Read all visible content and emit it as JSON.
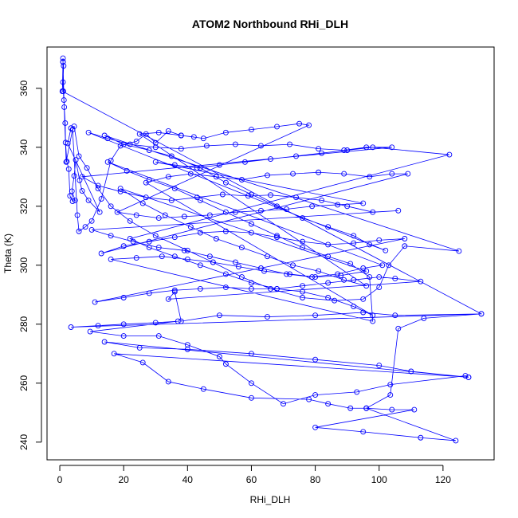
{
  "chart_data": {
    "type": "line",
    "title": "ATOM2 Northbound RHi_DLH",
    "xlabel": "RHi_DLH",
    "ylabel": "Theta (K)",
    "xlim": [
      -4,
      136
    ],
    "ylim": [
      234,
      374
    ],
    "xticks": [
      0,
      20,
      40,
      60,
      80,
      100,
      120
    ],
    "yticks": [
      240,
      260,
      280,
      300,
      320,
      340,
      360
    ],
    "grid": false,
    "legend": "none",
    "series_color": "#0000ff",
    "marker": "open-circle",
    "points": [
      [
        1.0,
        370.2
      ],
      [
        1.0,
        368.9
      ],
      [
        1.2,
        367.6
      ],
      [
        1.0,
        362.1
      ],
      [
        1.1,
        359.0
      ],
      [
        1.4,
        353.6
      ],
      [
        1.7,
        348.2
      ],
      [
        1.8,
        341.6
      ],
      [
        2.2,
        335.2
      ],
      [
        2.8,
        332.6
      ],
      [
        3.2,
        323.5
      ],
      [
        4.0,
        321.7
      ],
      [
        4.8,
        322.0
      ],
      [
        3.8,
        325.1
      ],
      [
        4.5,
        330.3
      ],
      [
        5.0,
        335.7
      ],
      [
        6.2,
        328.8
      ],
      [
        7.0,
        325.2
      ],
      [
        9.0,
        322.0
      ],
      [
        12.5,
        318.0
      ],
      [
        2.5,
        341.3
      ],
      [
        3.5,
        346.5
      ],
      [
        4.5,
        347.1
      ],
      [
        6.0,
        337.0
      ],
      [
        8.5,
        333.0
      ],
      [
        12.0,
        326.0
      ],
      [
        16.0,
        320.0
      ],
      [
        22.0,
        315.0
      ],
      [
        30.0,
        310.0
      ],
      [
        40.0,
        305.0
      ],
      [
        48.0,
        301.0
      ],
      [
        57.0,
        296.0
      ],
      [
        66.0,
        292.0
      ],
      [
        76.0,
        289.0
      ],
      [
        86.0,
        288.0
      ],
      [
        95.0,
        288.5
      ],
      [
        100.0,
        292.5
      ],
      [
        103.0,
        300.0
      ],
      [
        108.0,
        306.5
      ],
      [
        125.0,
        304.8
      ],
      [
        14.0,
        344.0
      ],
      [
        20.0,
        341.0
      ],
      [
        28.0,
        339.0
      ],
      [
        35.0,
        337.0
      ],
      [
        44.0,
        333.0
      ],
      [
        52.0,
        328.0
      ],
      [
        60.0,
        324.0
      ],
      [
        68.0,
        320.0
      ],
      [
        76.0,
        316.0
      ],
      [
        84.0,
        313.0
      ],
      [
        92.0,
        310.0
      ],
      [
        97.0,
        307.0
      ],
      [
        102.0,
        305.0
      ],
      [
        9.0,
        345.0
      ],
      [
        15.0,
        343.0
      ],
      [
        22.0,
        341.0
      ],
      [
        30.0,
        340.0
      ],
      [
        38.0,
        339.5
      ],
      [
        46.0,
        340.5
      ],
      [
        55.0,
        341.0
      ],
      [
        63.0,
        340.5
      ],
      [
        72.0,
        341.0
      ],
      [
        81.0,
        339.5
      ],
      [
        89.0,
        339.0
      ],
      [
        96.0,
        340.0
      ],
      [
        104.0,
        340.0
      ],
      [
        7.0,
        330.0
      ],
      [
        12.0,
        327.0
      ],
      [
        19.0,
        325.0
      ],
      [
        27.0,
        323.0
      ],
      [
        35.0,
        322.0
      ],
      [
        43.0,
        323.0
      ],
      [
        51.0,
        324.0
      ],
      [
        59.0,
        323.5
      ],
      [
        66.0,
        323.8
      ],
      [
        74.0,
        323.0
      ],
      [
        82.0,
        322.0
      ],
      [
        90.0,
        320.0
      ],
      [
        98.0,
        318.0
      ],
      [
        106.0,
        318.5
      ],
      [
        10.0,
        312.0
      ],
      [
        16.0,
        310.0
      ],
      [
        23.0,
        308.0
      ],
      [
        31.0,
        306.0
      ],
      [
        39.0,
        305.0
      ],
      [
        47.0,
        303.0
      ],
      [
        55.0,
        301.0
      ],
      [
        63.0,
        299.0
      ],
      [
        71.0,
        297.0
      ],
      [
        79.0,
        296.0
      ],
      [
        87.0,
        297.0
      ],
      [
        95.0,
        299.0
      ],
      [
        101.0,
        300.0
      ],
      [
        15.0,
        335.0
      ],
      [
        21.0,
        332.0
      ],
      [
        28.0,
        329.0
      ],
      [
        36.0,
        326.0
      ],
      [
        44.0,
        322.0
      ],
      [
        52.0,
        318.0
      ],
      [
        60.0,
        314.0
      ],
      [
        68.0,
        310.0
      ],
      [
        76.0,
        306.0
      ],
      [
        84.0,
        303.0
      ],
      [
        91.0,
        300.5
      ],
      [
        97.0,
        296.0
      ],
      [
        98.0,
        281.0
      ],
      [
        16.0,
        302.0
      ],
      [
        24.0,
        302.5
      ],
      [
        32.0,
        303.0
      ],
      [
        40.0,
        302.0
      ],
      [
        48.0,
        301.0
      ],
      [
        56.0,
        299.5
      ],
      [
        64.0,
        298.0
      ],
      [
        72.0,
        297.0
      ],
      [
        80.0,
        296.0
      ],
      [
        88.0,
        296.5
      ],
      [
        96.0,
        298.0
      ],
      [
        19.0,
        326.0
      ],
      [
        26.0,
        321.0
      ],
      [
        33.0,
        317.0
      ],
      [
        41.0,
        313.0
      ],
      [
        49.0,
        309.0
      ],
      [
        57.0,
        306.0
      ],
      [
        65.0,
        303.0
      ],
      [
        73.0,
        300.0
      ],
      [
        81.0,
        298.0
      ],
      [
        89.0,
        295.0
      ],
      [
        96.0,
        293.0
      ],
      [
        25.0,
        344.5
      ],
      [
        31.0,
        345.0
      ],
      [
        38.0,
        344.0
      ],
      [
        45.0,
        343.0
      ],
      [
        52.0,
        345.0
      ],
      [
        60.0,
        346.0
      ],
      [
        68.0,
        347.0
      ],
      [
        75.0,
        348.0
      ],
      [
        78.0,
        347.5
      ],
      [
        18.0,
        318.0
      ],
      [
        24.0,
        317.0
      ],
      [
        31.0,
        316.0
      ],
      [
        39.0,
        316.5
      ],
      [
        47.0,
        317.0
      ],
      [
        55.0,
        318.0
      ],
      [
        63.0,
        318.5
      ],
      [
        71.0,
        319.0
      ],
      [
        79.0,
        320.0
      ],
      [
        87.0,
        320.5
      ],
      [
        95.0,
        321.0
      ],
      [
        30.0,
        335.0
      ],
      [
        36.0,
        334.0
      ],
      [
        43.0,
        333.0
      ],
      [
        50.0,
        334.0
      ],
      [
        58.0,
        335.0
      ],
      [
        66.0,
        336.0
      ],
      [
        74.0,
        337.0
      ],
      [
        82.0,
        338.0
      ],
      [
        90.0,
        339.0
      ],
      [
        98.0,
        340.0
      ],
      [
        122.0,
        337.5
      ],
      [
        22.0,
        309.0
      ],
      [
        28.0,
        306.0
      ],
      [
        36.0,
        303.0
      ],
      [
        44.0,
        300.0
      ],
      [
        52.0,
        297.0
      ],
      [
        60.0,
        294.0
      ],
      [
        68.0,
        292.0
      ],
      [
        76.0,
        291.0
      ],
      [
        84.0,
        289.0
      ],
      [
        92.0,
        286.0
      ],
      [
        98.0,
        283.0
      ],
      [
        27.0,
        328.0
      ],
      [
        34.0,
        330.0
      ],
      [
        41.0,
        331.0
      ],
      [
        49.0,
        330.0
      ],
      [
        57.0,
        329.0
      ],
      [
        65.0,
        330.5
      ],
      [
        73.0,
        331.0
      ],
      [
        81.0,
        331.5
      ],
      [
        89.0,
        331.0
      ],
      [
        97.0,
        330.0
      ],
      [
        104.0,
        331.0
      ],
      [
        109.0,
        331.0
      ],
      [
        13.0,
        304.0
      ],
      [
        20.0,
        306.5
      ],
      [
        28.0,
        308.0
      ],
      [
        36.0,
        309.5
      ],
      [
        44.0,
        311.0
      ],
      [
        52.0,
        311.5
      ],
      [
        60.0,
        311.0
      ],
      [
        68.0,
        309.5
      ],
      [
        76.0,
        308.0
      ],
      [
        84.0,
        307.0
      ],
      [
        92.0,
        307.5
      ],
      [
        100.0,
        308.5
      ],
      [
        108.0,
        309.0
      ],
      [
        11.0,
        287.5
      ],
      [
        20.0,
        289.0
      ],
      [
        28.0,
        290.5
      ],
      [
        36.0,
        291.5
      ],
      [
        44.0,
        292.0
      ],
      [
        52.0,
        292.5
      ],
      [
        60.0,
        292.0
      ],
      [
        68.0,
        292.0
      ],
      [
        76.0,
        293.0
      ],
      [
        84.0,
        294.0
      ],
      [
        92.0,
        295.0
      ],
      [
        100.0,
        296.0
      ],
      [
        105.0,
        295.5
      ],
      [
        113.0,
        294.5
      ],
      [
        34.0,
        288.5
      ],
      [
        36.0,
        291.0
      ],
      [
        38.0,
        281.0
      ],
      [
        50.0,
        283.0
      ],
      [
        65.0,
        282.5
      ],
      [
        80.0,
        283.0
      ],
      [
        95.0,
        284.0
      ],
      [
        105.0,
        283.0
      ],
      [
        132.0,
        283.5
      ],
      [
        3.5,
        279.0
      ],
      [
        12.0,
        279.5
      ],
      [
        20.0,
        280.0
      ],
      [
        30.0,
        280.5
      ],
      [
        37.0,
        281.0
      ],
      [
        9.5,
        277.5
      ],
      [
        20.0,
        276.0
      ],
      [
        31.0,
        276.0
      ],
      [
        40.0,
        273.0
      ],
      [
        50.0,
        269.0
      ],
      [
        52.0,
        266.5
      ],
      [
        60.0,
        260.0
      ],
      [
        70.0,
        253.0
      ],
      [
        80.0,
        256.0
      ],
      [
        93.0,
        257.0
      ],
      [
        103.5,
        259.5
      ],
      [
        127.0,
        262.5
      ],
      [
        128.0,
        262.0
      ],
      [
        14.0,
        274.0
      ],
      [
        25.0,
        272.0
      ],
      [
        40.0,
        271.5
      ],
      [
        60.0,
        270.0
      ],
      [
        80.0,
        268.0
      ],
      [
        100.0,
        266.0
      ],
      [
        110.0,
        264.0
      ],
      [
        128.0,
        262.0
      ],
      [
        17.0,
        270.0
      ],
      [
        26.0,
        267.0
      ],
      [
        34.0,
        260.5
      ],
      [
        45.0,
        258.0
      ],
      [
        60.0,
        255.0
      ],
      [
        78.0,
        254.5
      ],
      [
        84.0,
        253.0
      ],
      [
        91.0,
        251.5
      ],
      [
        96.0,
        251.5
      ],
      [
        104.0,
        251.0
      ],
      [
        111.0,
        251.0
      ],
      [
        80.0,
        245.0
      ],
      [
        95.0,
        243.5
      ],
      [
        113.0,
        241.5
      ],
      [
        124.0,
        240.5
      ],
      [
        96.0,
        251.5
      ],
      [
        103.5,
        256.0
      ],
      [
        106.0,
        278.5
      ],
      [
        114.0,
        282.0
      ],
      [
        132.0,
        283.5
      ],
      [
        0.8,
        359.0
      ],
      [
        1.0,
        369.0
      ],
      [
        1.3,
        356.0
      ],
      [
        2.0,
        335.0
      ],
      [
        4.0,
        346.0
      ],
      [
        5.5,
        317.0
      ],
      [
        6.0,
        311.5
      ],
      [
        8.0,
        313.0
      ],
      [
        10.0,
        315.0
      ],
      [
        13.0,
        322.5
      ],
      [
        16.0,
        335.5
      ],
      [
        19.0,
        340.5
      ],
      [
        24.0,
        342.0
      ],
      [
        27.0,
        344.5
      ],
      [
        30.0,
        341.5
      ],
      [
        34.0,
        345.5
      ],
      [
        38.0,
        344.0
      ],
      [
        42.0,
        343.5
      ]
    ]
  }
}
